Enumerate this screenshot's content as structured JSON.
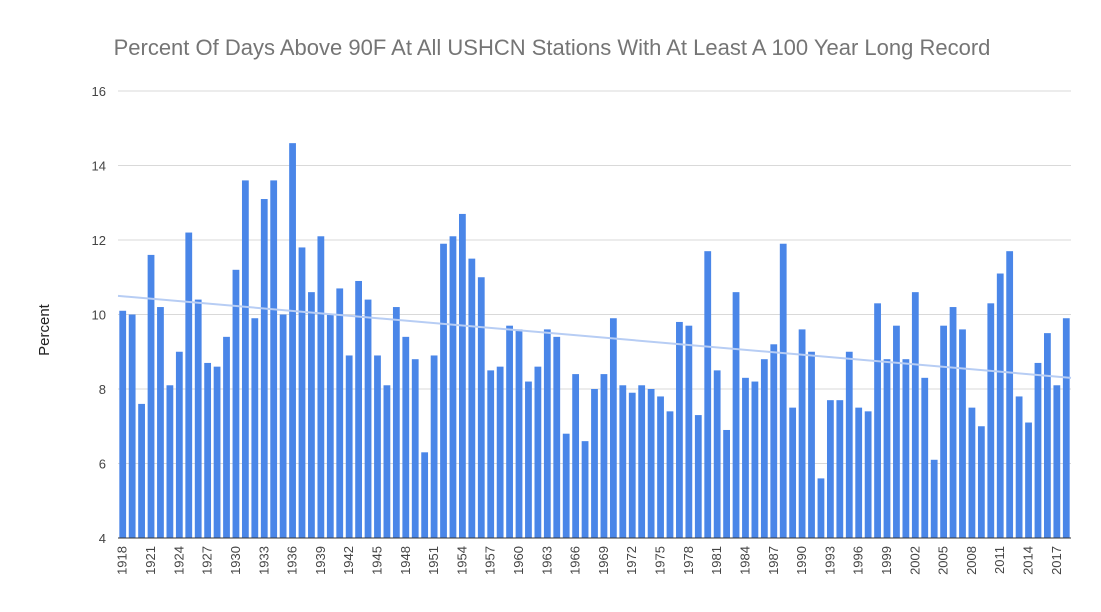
{
  "chart_data": {
    "type": "bar",
    "title": "Percent Of Days Above 90F   At All USHCN Stations With At Least A 100 Year Long Record",
    "xlabel": "",
    "ylabel": "Percent",
    "ylim": [
      4,
      16
    ],
    "yticks": [
      4,
      6,
      8,
      10,
      12,
      14,
      16
    ],
    "grid": true,
    "legend": "none",
    "colors": {
      "bar": "#4a86e8",
      "trend": "#b7cdf4",
      "grid": "#d9d9d9",
      "axis": "#333333"
    },
    "categories": [
      1918,
      1919,
      1920,
      1921,
      1922,
      1923,
      1924,
      1925,
      1926,
      1927,
      1928,
      1929,
      1930,
      1931,
      1932,
      1933,
      1934,
      1935,
      1936,
      1937,
      1938,
      1939,
      1940,
      1941,
      1942,
      1943,
      1944,
      1945,
      1946,
      1947,
      1948,
      1949,
      1950,
      1951,
      1952,
      1953,
      1954,
      1955,
      1956,
      1957,
      1958,
      1959,
      1960,
      1961,
      1962,
      1963,
      1964,
      1965,
      1966,
      1967,
      1968,
      1969,
      1970,
      1971,
      1972,
      1973,
      1974,
      1975,
      1976,
      1977,
      1978,
      1979,
      1980,
      1981,
      1982,
      1983,
      1984,
      1985,
      1986,
      1987,
      1988,
      1989,
      1990,
      1991,
      1992,
      1993,
      1994,
      1995,
      1996,
      1997,
      1998,
      1999,
      2000,
      2001,
      2002,
      2003,
      2004,
      2005,
      2006,
      2007,
      2008,
      2009,
      2010,
      2011,
      2012,
      2013,
      2014,
      2015,
      2016,
      2017,
      2018
    ],
    "tick_labels": [
      "1918",
      "1921",
      "1924",
      "1927",
      "1930",
      "1933",
      "1936",
      "1939",
      "1942",
      "1945",
      "1948",
      "1951",
      "1954",
      "1957",
      "1960",
      "1963",
      "1966",
      "1969",
      "1972",
      "1975",
      "1978",
      "1981",
      "1984",
      "1987",
      "1990",
      "1993",
      "1996",
      "1999",
      "2002",
      "2005",
      "2008",
      "2011",
      "2014",
      "2017"
    ],
    "series": [
      {
        "name": "Percent",
        "values": [
          10.1,
          10.0,
          7.6,
          11.6,
          10.2,
          8.1,
          9.0,
          12.2,
          10.4,
          8.7,
          8.6,
          9.4,
          11.2,
          13.6,
          9.9,
          13.1,
          13.6,
          10.0,
          14.6,
          11.8,
          10.6,
          12.1,
          10.0,
          10.7,
          8.9,
          10.9,
          10.4,
          8.9,
          8.1,
          10.2,
          9.4,
          8.8,
          6.3,
          8.9,
          11.9,
          12.1,
          12.7,
          11.5,
          11.0,
          8.5,
          8.6,
          9.7,
          9.6,
          8.2,
          8.6,
          9.6,
          9.4,
          6.8,
          8.4,
          6.6,
          8.0,
          8.4,
          9.9,
          8.1,
          7.9,
          8.1,
          8.0,
          7.8,
          7.4,
          9.8,
          9.7,
          7.3,
          11.7,
          8.5,
          6.9,
          10.6,
          8.3,
          8.2,
          8.8,
          9.2,
          11.9,
          7.5,
          9.6,
          9.0,
          5.6,
          7.7,
          7.7,
          9.0,
          7.5,
          7.4,
          10.3,
          8.8,
          9.7,
          8.8,
          10.6,
          8.3,
          6.1,
          9.7,
          10.2,
          9.6,
          7.5,
          7.0,
          10.3,
          11.1,
          11.7,
          7.8,
          7.1,
          8.7,
          9.5,
          8.1,
          9.9
        ]
      }
    ],
    "trend": {
      "start": 10.5,
      "end": 8.3
    }
  }
}
